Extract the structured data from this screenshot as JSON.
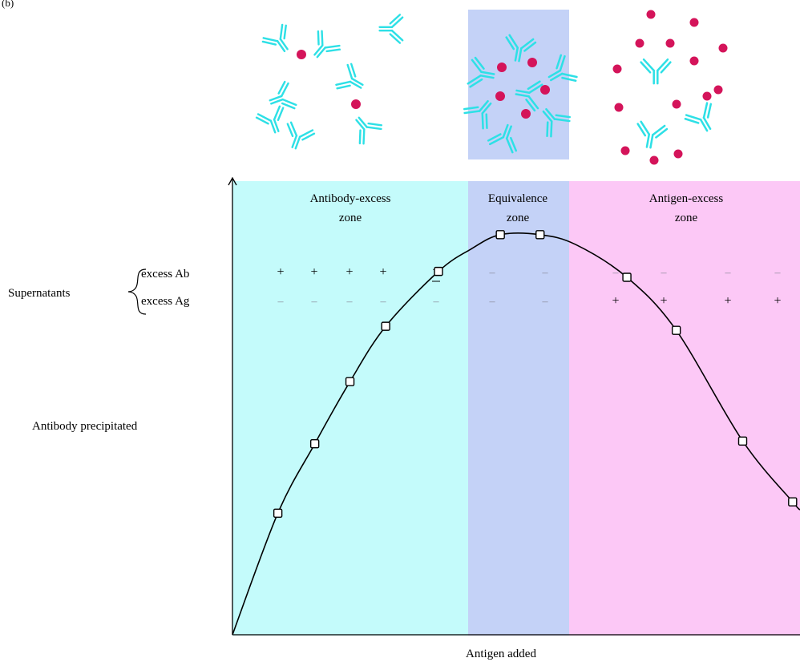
{
  "panel_label": "(b)",
  "zones": {
    "antibody_excess": {
      "line1": "Antibody-excess",
      "line2": "zone",
      "color": "#c4fbfb"
    },
    "equivalence": {
      "line1": "Equivalence",
      "line2": "zone",
      "color": "#c4d2f7"
    },
    "antigen_excess": {
      "line1": "Antigen-excess",
      "line2": "zone",
      "color": "#fcc8f6"
    }
  },
  "supernatants": {
    "label": "Supernatants",
    "row_ab_label": "excess Ab",
    "row_ag_label": "excess Ag",
    "excess_ab": [
      "+",
      "+",
      "+",
      "+",
      "±",
      "–",
      "–",
      "–",
      "–",
      "–",
      "–"
    ],
    "excess_ag": [
      "–",
      "–",
      "–",
      "–",
      "–",
      "–",
      "–",
      "+",
      "+",
      "+",
      "+"
    ]
  },
  "colors": {
    "antibody": "#2ee0e6",
    "antigen": "#d4145a",
    "curve": "#000000"
  },
  "chart_data": {
    "type": "line",
    "xlabel": "Antigen added",
    "ylabel": "Antibody precipitated",
    "xlim": [
      0,
      10
    ],
    "ylim": [
      0,
      10
    ],
    "zones": [
      {
        "name": "Antibody-excess zone",
        "x_range": [
          0,
          4.2
        ]
      },
      {
        "name": "Equivalence zone",
        "x_range": [
          4.2,
          6.05
        ]
      },
      {
        "name": "Antigen-excess zone",
        "x_range": [
          6.05,
          10
        ]
      }
    ],
    "series": [
      {
        "x": [
          0.8,
          1.45,
          2.07,
          2.7,
          3.63,
          4.72,
          5.42,
          6.95,
          7.82,
          8.99,
          9.87
        ],
        "y": [
          2.68,
          4.21,
          5.58,
          6.8,
          8.01,
          8.82,
          8.82,
          7.88,
          6.71,
          4.27,
          2.93
        ]
      }
    ],
    "curve": {
      "x": [
        0,
        0.8,
        1.45,
        2.07,
        2.7,
        3.63,
        4.2,
        4.72,
        5.42,
        6.05,
        6.95,
        7.82,
        8.99,
        9.87,
        10
      ],
      "y": [
        0,
        2.68,
        4.21,
        5.58,
        6.8,
        8.01,
        8.5,
        8.82,
        8.82,
        8.6,
        7.88,
        6.71,
        4.27,
        2.93,
        2.76
      ]
    }
  }
}
